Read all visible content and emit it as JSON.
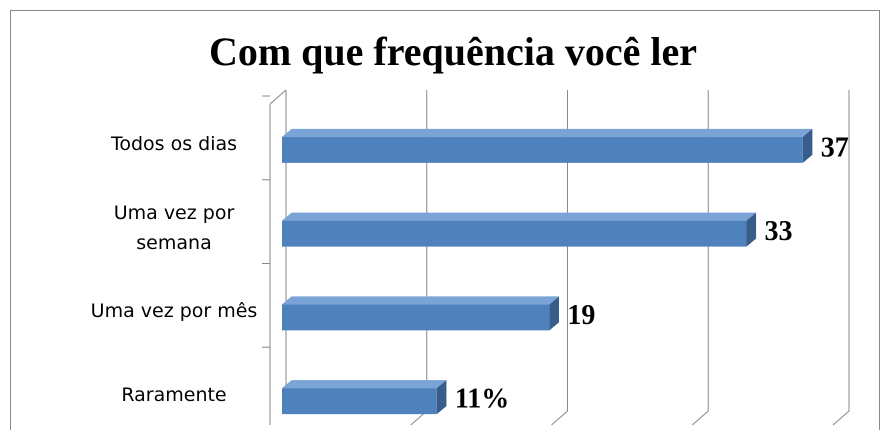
{
  "chart_data": {
    "type": "bar",
    "orientation": "horizontal",
    "title": "Com que frequência você ler",
    "categories": [
      "Todos os dias",
      "Uma vez por semana",
      "Uma vez por mês",
      "Raramente"
    ],
    "values": [
      37,
      33,
      19,
      11
    ],
    "value_labels": [
      "37",
      "33",
      "19",
      "11%"
    ],
    "color": "#4f81bd",
    "xlim": [
      0,
      40
    ],
    "xticks": [
      0,
      10,
      20,
      30,
      40
    ],
    "grid": true
  }
}
